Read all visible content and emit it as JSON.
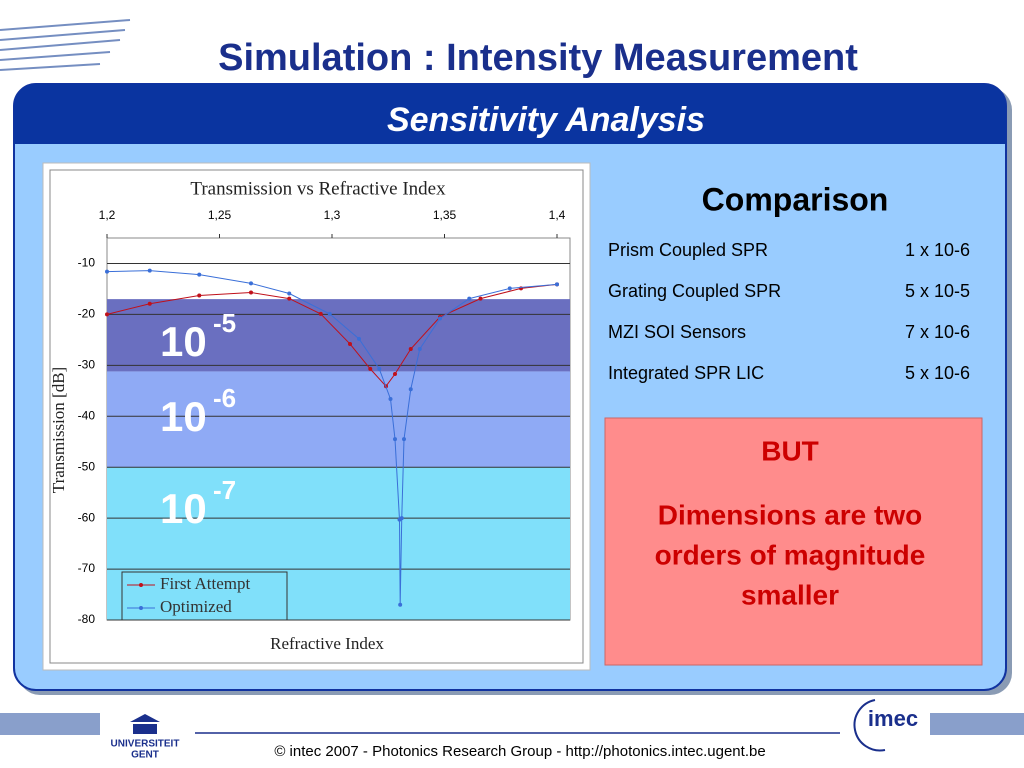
{
  "header": {
    "title": "Simulation : Intensity Measurement",
    "subtitle": "Sensitivity Analysis"
  },
  "chart_data": {
    "type": "line",
    "title": "Transmission vs Refractive Index",
    "x_label": "Refractive Index",
    "y_label": "Transmission [dB]",
    "xlim": [
      1.2,
      1.4
    ],
    "xticks": [
      {
        "value": 1.2,
        "label": "1,2"
      },
      {
        "value": 1.25,
        "label": "1,25"
      },
      {
        "value": 1.3,
        "label": "1,3"
      },
      {
        "value": 1.35,
        "label": "1,35"
      },
      {
        "value": 1.4,
        "label": "1,4"
      }
    ],
    "ylim": [
      -80,
      -5
    ],
    "yticks": [
      -80,
      -70,
      -60,
      -50,
      -40,
      -30,
      -20,
      -10
    ],
    "grid": true,
    "legend": "lower left",
    "series": [
      {
        "name": "First Attempt",
        "color": "#c0101a",
        "x": [
          1.2,
          1.219,
          1.241,
          1.264,
          1.281,
          1.295,
          1.308,
          1.317,
          1.324,
          1.328,
          1.335,
          1.348,
          1.366,
          1.384,
          1.4
        ],
        "values": [
          -20,
          -17.9,
          -16.3,
          -15.7,
          -16.9,
          -19.9,
          -25.8,
          -30.7,
          -34.1,
          -31.7,
          -26.8,
          -20.5,
          -16.9,
          -14.9,
          -14.1
        ]
      },
      {
        "name": "Optimized",
        "color": "#3a6fd8",
        "x": [
          1.2,
          1.219,
          1.241,
          1.264,
          1.281,
          1.299,
          1.312,
          1.321,
          1.326,
          1.328,
          1.33,
          1.3303,
          1.331,
          1.332,
          1.335,
          1.339,
          1.348,
          1.361,
          1.379,
          1.4
        ],
        "values": [
          -11.6,
          -11.4,
          -12.2,
          -13.9,
          -15.9,
          -19.9,
          -24.8,
          -30.7,
          -36.6,
          -44.5,
          -60.3,
          -77,
          -60,
          -44.5,
          -34.7,
          -26.8,
          -20.8,
          -16.9,
          -14.9,
          -14.1
        ]
      }
    ],
    "bands": [
      {
        "base": "10",
        "exponent": "-5",
        "from": -17,
        "to": -31.2,
        "color": "#6a6fc0"
      },
      {
        "base": "10",
        "exponent": "-6",
        "from": -31.2,
        "to": -50,
        "color": "#8faaf5"
      },
      {
        "base": "10",
        "exponent": "-7",
        "from": -50,
        "to": -80,
        "color": "#80e0fa"
      }
    ]
  },
  "comparison": {
    "title": "Comparison",
    "rows": [
      [
        "Prism Coupled SPR",
        "1 x 10-6"
      ],
      [
        "Grating Coupled SPR",
        "5 x 10-5"
      ],
      [
        "MZI SOI Sensors",
        "7 x 10-6"
      ],
      [
        "Integrated SPR LIC",
        "5 x 10-6"
      ]
    ]
  },
  "note": {
    "heading": "BUT",
    "text": [
      "Dimensions are two",
      "orders of magnitude",
      "smaller"
    ]
  },
  "footer": {
    "text": "© intec 2007  -  Photonics Research Group  -   http://photonics.intec.ugent.be",
    "logo_left": [
      "UNIVERSITEIT",
      "GENT"
    ],
    "logo_right": "imec"
  }
}
